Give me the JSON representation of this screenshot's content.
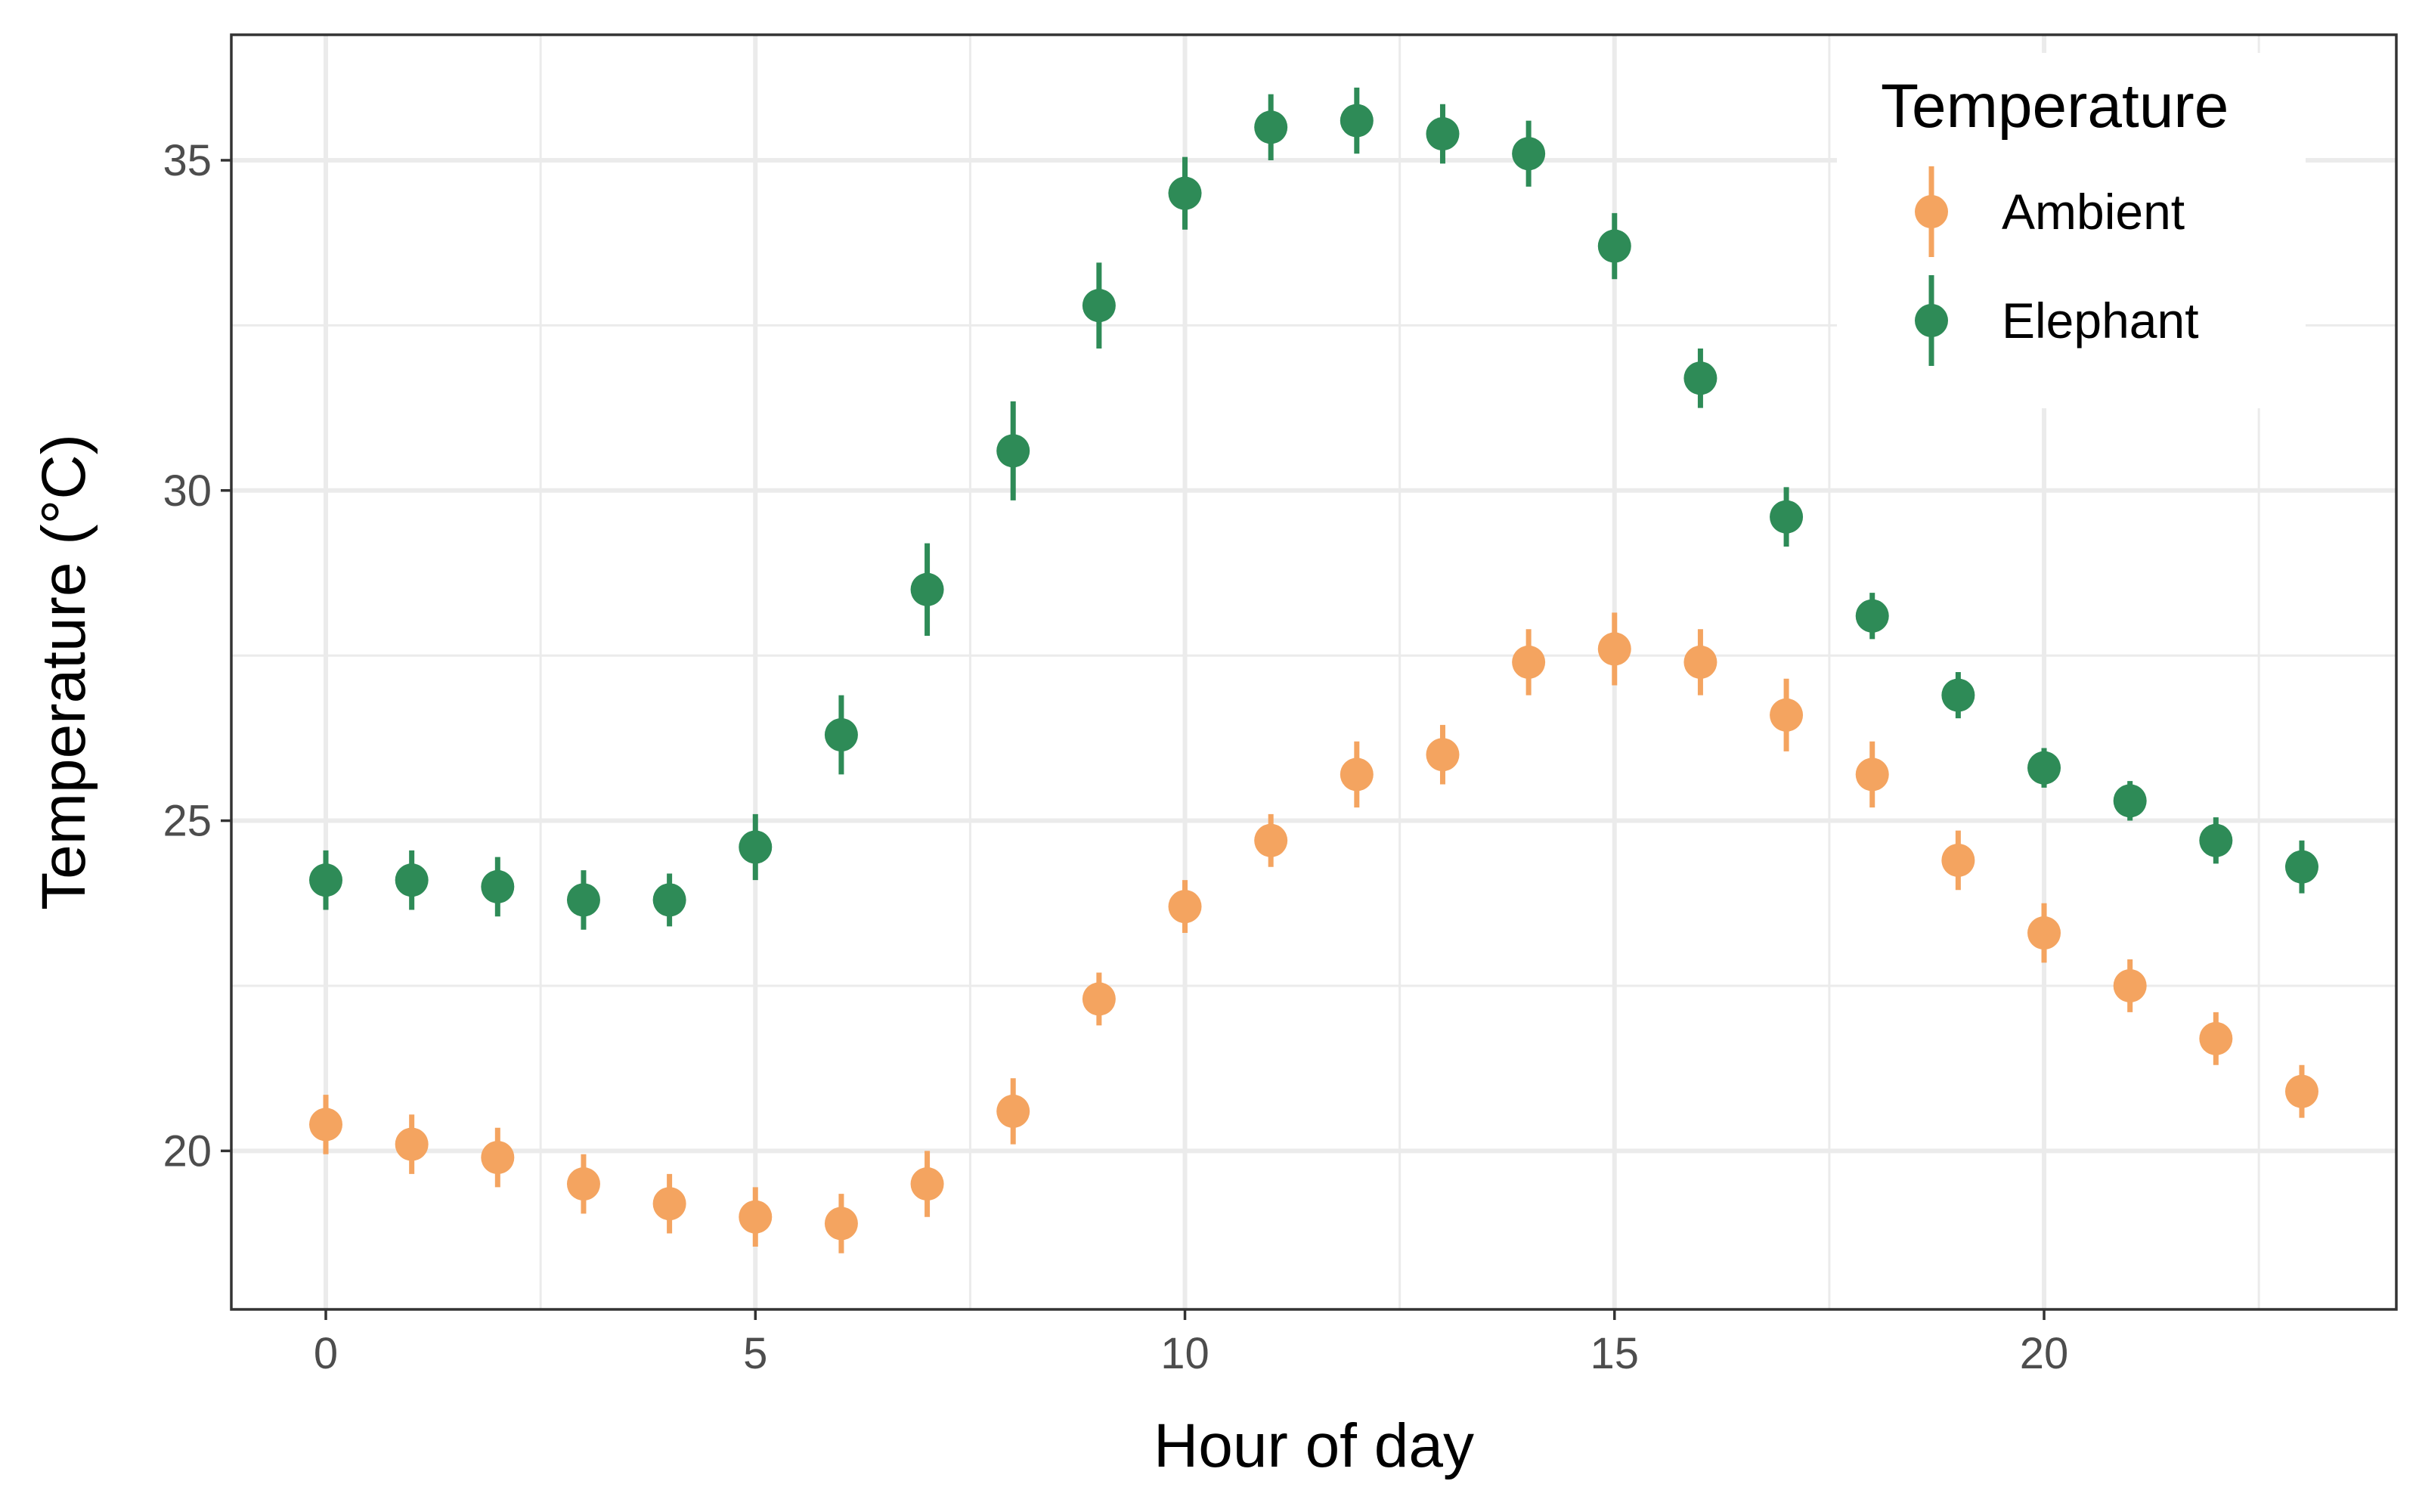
{
  "chart_data": {
    "type": "scatter",
    "xlabel": "Hour of day",
    "ylabel": "Temperature (°C)",
    "xlim": [
      -1.1,
      24.1
    ],
    "ylim": [
      17.6,
      36.9
    ],
    "xticks": [
      0,
      5,
      10,
      15,
      20
    ],
    "yticks": [
      20,
      25,
      30,
      35
    ],
    "grid": true,
    "legend": {
      "title": "Temperature",
      "position": "top-right"
    },
    "x": [
      0,
      1,
      2,
      3,
      4,
      5,
      6,
      7,
      8,
      9,
      10,
      11,
      12,
      13,
      14,
      15,
      16,
      17,
      18,
      19,
      20,
      21,
      22,
      23
    ],
    "series": [
      {
        "name": "Ambient",
        "color": "#F4A460",
        "values": [
          20.4,
          20.1,
          19.9,
          19.5,
          19.2,
          19.0,
          18.9,
          19.5,
          20.6,
          22.3,
          23.7,
          24.7,
          25.7,
          26.0,
          27.4,
          27.6,
          27.4,
          26.6,
          25.7,
          24.4,
          23.3,
          22.5,
          21.7,
          20.9
        ],
        "error": [
          0.45,
          0.45,
          0.45,
          0.45,
          0.45,
          0.45,
          0.45,
          0.5,
          0.5,
          0.4,
          0.4,
          0.4,
          0.5,
          0.45,
          0.5,
          0.55,
          0.5,
          0.55,
          0.5,
          0.45,
          0.45,
          0.4,
          0.4,
          0.4
        ]
      },
      {
        "name": "Elephant",
        "color": "#2E8B57",
        "values": [
          24.1,
          24.1,
          24.0,
          23.8,
          23.8,
          24.6,
          26.3,
          28.5,
          30.6,
          32.8,
          34.5,
          35.5,
          35.6,
          35.4,
          35.1,
          33.7,
          31.7,
          29.6,
          28.1,
          26.9,
          25.8,
          25.3,
          24.7,
          24.3
        ],
        "error": [
          0.45,
          0.45,
          0.45,
          0.45,
          0.4,
          0.5,
          0.6,
          0.7,
          0.75,
          0.65,
          0.55,
          0.5,
          0.5,
          0.45,
          0.5,
          0.5,
          0.45,
          0.45,
          0.35,
          0.35,
          0.3,
          0.3,
          0.35,
          0.4
        ]
      }
    ]
  }
}
